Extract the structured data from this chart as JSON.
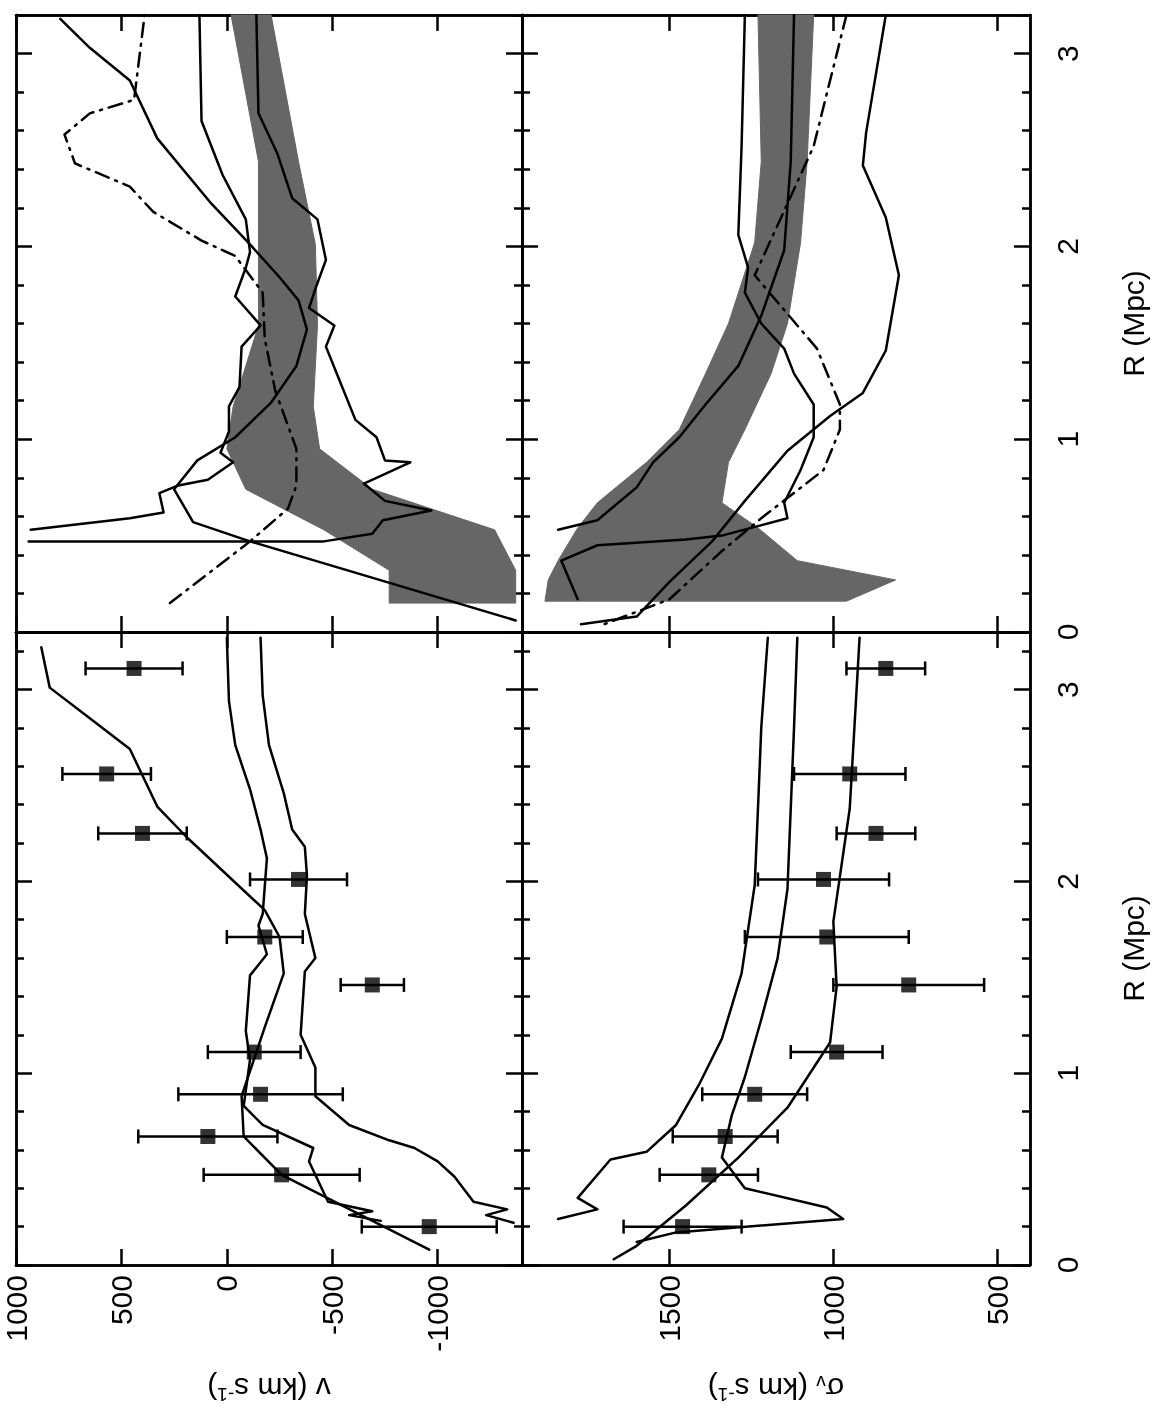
{
  "chart_data": [
    {
      "type": "line",
      "xlim": [
        1000,
        -1400
      ],
      "xticks": [
        1000,
        500,
        0,
        -500,
        -1000
      ],
      "ylim": [
        0,
        3.2
      ],
      "yticks": [
        0,
        {
          "value": 0.2,
          "label": null
        },
        {
          "value": 0.4,
          "label": null
        },
        {
          "value": 0.6,
          "label": null
        },
        {
          "value": 0.8,
          "label": null
        },
        1,
        {
          "value": 1.2,
          "label": null
        },
        {
          "value": 1.4,
          "label": null
        },
        {
          "value": 1.6,
          "label": null
        },
        {
          "value": 1.8,
          "label": null
        },
        2,
        {
          "value": 2.2,
          "label": null
        },
        {
          "value": 2.4,
          "label": null
        },
        {
          "value": 2.6,
          "label": null
        },
        {
          "value": 2.8,
          "label": null
        },
        3,
        {
          "value": 3.2,
          "label": null
        }
      ],
      "tick_labels": false,
      "series": [
        {
          "type": "area",
          "color": "#666666",
          "x": [
            -20,
            -150,
            -150,
            -150,
            -30,
            0,
            -90,
            -460,
            -770,
            -770,
            -1370,
            -1370,
            -1270,
            -690,
            -440,
            -410,
            -430,
            -420,
            -340,
            -210
          ],
          "values": [
            3.2,
            2.44,
            2.01,
            1.59,
            1.17,
            0.95,
            0.74,
            0.53,
            0.32,
            0.15,
            0.15,
            0.32,
            0.53,
            0.74,
            0.95,
            1.17,
            1.59,
            2.01,
            2.44,
            3.2
          ]
        },
        {
          "color": "#000000",
          "x": [
            130,
            120,
            20,
            -90,
            -110,
            -90,
            -40,
            -160,
            -70,
            -60,
            -10,
            -10,
            30,
            -30,
            90,
            230,
            320,
            300,
            460,
            930
          ],
          "values": [
            3.2,
            2.65,
            2.37,
            2.14,
            1.97,
            1.89,
            1.74,
            1.59,
            1.48,
            1.27,
            1.17,
            1.04,
            0.93,
            0.88,
            0.79,
            0.76,
            0.72,
            0.62,
            0.59,
            0.53
          ]
        },
        {
          "color": "#000000",
          "x": [
            -140,
            -150,
            -240,
            -310,
            -430,
            -470,
            -420,
            -390,
            -510,
            -470,
            -540,
            -610,
            -710,
            -750,
            -870,
            -650,
            -750,
            -970,
            -740,
            -690,
            -460,
            940
          ],
          "values": [
            3.2,
            2.69,
            2.48,
            2.25,
            2.14,
            1.93,
            1.78,
            1.68,
            1.59,
            1.48,
            1.29,
            1.1,
            1.01,
            0.89,
            0.88,
            0.77,
            0.68,
            0.63,
            0.58,
            0.51,
            0.47,
            0.47
          ]
        },
        {
          "color": "#000000",
          "x": [
            -1370,
            -110,
            160,
            250,
            140,
            -40,
            -210,
            -330,
            -380,
            -340,
            -250,
            -110,
            80,
            330,
            460,
            650,
            790
          ],
          "values": [
            0.06,
            0.47,
            0.57,
            0.74,
            0.89,
            1.01,
            1.19,
            1.38,
            1.57,
            1.72,
            1.84,
            2.01,
            2.23,
            2.56,
            2.86,
            3.03,
            3.18
          ]
        },
        {
          "color": "#000000",
          "line_style": "dashdot",
          "x": [
            270,
            -110,
            -290,
            -330,
            -330,
            -230,
            -180,
            -170,
            -40,
            120,
            350,
            460,
            720,
            770,
            650,
            440,
            390
          ],
          "values": [
            0.15,
            0.47,
            0.64,
            0.76,
            0.95,
            1.25,
            1.52,
            1.76,
            1.95,
            2.03,
            2.18,
            2.31,
            2.43,
            2.58,
            2.69,
            2.76,
            3.2
          ]
        }
      ]
    },
    {
      "type": "line",
      "ylabel": "R (Mpc)",
      "xlim": [
        1950,
        400
      ],
      "xticks": [
        1500,
        1000,
        500
      ],
      "ylim": [
        0,
        3.2
      ],
      "yticks": [
        0,
        {
          "value": 0.2,
          "label": null
        },
        {
          "value": 0.4,
          "label": null
        },
        {
          "value": 0.6,
          "label": null
        },
        {
          "value": 0.8,
          "label": null
        },
        1,
        {
          "value": 1.2,
          "label": null
        },
        {
          "value": 1.4,
          "label": null
        },
        {
          "value": 1.6,
          "label": null
        },
        {
          "value": 1.8,
          "label": null
        },
        2,
        {
          "value": 2.2,
          "label": null
        },
        {
          "value": 2.4,
          "label": null
        },
        {
          "value": 2.6,
          "label": null
        },
        {
          "value": 2.8,
          "label": null
        },
        3,
        {
          "value": 3.2,
          "label": null
        }
      ],
      "tick_labels": "y",
      "series": [
        {
          "type": "area",
          "color": "#666666",
          "x": [
            1230,
            1220,
            1240,
            1320,
            1390,
            1470,
            1570,
            1720,
            1780,
            1840,
            1870,
            1880,
            960,
            810,
            1110,
            1230,
            1340,
            1320,
            1270,
            1190,
            1140,
            1100,
            1080,
            1060
          ],
          "values": [
            3.2,
            2.44,
            2.02,
            1.6,
            1.34,
            1.05,
            0.88,
            0.67,
            0.54,
            0.37,
            0.27,
            0.16,
            0.16,
            0.27,
            0.37,
            0.54,
            0.67,
            0.88,
            1.05,
            1.34,
            1.6,
            2.02,
            2.44,
            3.2
          ]
        },
        {
          "color": "#000000",
          "x": [
            1120,
            1130,
            1150,
            1220,
            1290,
            1390,
            1470,
            1550,
            1600,
            1720,
            1840
          ],
          "values": [
            3.2,
            2.44,
            1.98,
            1.64,
            1.38,
            1.18,
            1.01,
            0.88,
            0.75,
            0.58,
            0.53
          ]
        },
        {
          "color": "#000000",
          "x": [
            1270,
            1280,
            1290,
            1260,
            1270,
            1220,
            1150,
            1120,
            1060,
            1060,
            1100,
            1150,
            1140,
            1340,
            1450,
            1720,
            1830,
            1780
          ],
          "values": [
            3.2,
            2.52,
            2.06,
            1.89,
            1.76,
            1.6,
            1.47,
            1.34,
            1.18,
            1.01,
            0.84,
            0.67,
            0.59,
            0.5,
            0.48,
            0.45,
            0.37,
            0.17
          ]
        },
        {
          "color": "#000000",
          "line_style": "dashdot",
          "x": [
            960,
            1060,
            1240,
            1050,
            980,
            980,
            1030,
            1220,
            1340,
            1500,
            1700
          ],
          "values": [
            3.2,
            2.52,
            1.85,
            1.47,
            1.18,
            1.05,
            0.84,
            0.59,
            0.42,
            0.17,
            0.04
          ]
        },
        {
          "color": "#000000",
          "x": [
            840,
            900,
            910,
            840,
            800,
            840,
            910,
            1010,
            1140,
            1270,
            1370,
            1500,
            1600,
            1770
          ],
          "values": [
            3.2,
            2.59,
            2.42,
            2.15,
            1.85,
            1.46,
            1.24,
            1.12,
            0.94,
            0.68,
            0.47,
            0.26,
            0.08,
            0.04
          ]
        }
      ]
    },
    {
      "type": "line",
      "xlabel": "v (km s$^{-1}$)",
      "xlim": [
        1000,
        -1400
      ],
      "xticks": [
        1000,
        500,
        0,
        -500,
        -1000
      ],
      "ylim": [
        0,
        3.3
      ],
      "yticks": [
        0,
        {
          "value": 0.2,
          "label": null
        },
        {
          "value": 0.4,
          "label": null
        },
        {
          "value": 0.6,
          "label": null
        },
        {
          "value": 0.8,
          "label": null
        },
        1,
        {
          "value": 1.2,
          "label": null
        },
        {
          "value": 1.4,
          "label": null
        },
        {
          "value": 1.6,
          "label": null
        },
        {
          "value": 1.8,
          "label": null
        },
        2,
        {
          "value": 2.2,
          "label": null
        },
        {
          "value": 2.4,
          "label": null
        },
        {
          "value": 2.6,
          "label": null
        },
        {
          "value": 2.8,
          "label": null
        },
        3,
        {
          "value": 3.2,
          "label": null
        }
      ],
      "tick_labels": "x",
      "series": [
        {
          "type": "scatter",
          "marker": "square",
          "color": "#000000",
          "x": [
            440,
            570,
            400,
            -340,
            -180,
            -690,
            -130,
            -160,
            90,
            -260,
            -960
          ],
          "values": [
            3.11,
            2.56,
            2.25,
            2.01,
            1.71,
            1.46,
            1.11,
            0.89,
            0.67,
            0.47,
            0.2
          ],
          "xerrors": [
            230,
            210,
            210,
            230,
            180,
            150,
            220,
            390,
            330,
            370,
            320
          ]
        },
        {
          "color": "#000000",
          "x": [
            -960,
            -260,
            -80,
            -70,
            -180,
            -270,
            -250,
            -180,
            190,
            330,
            460,
            650,
            840,
            880
          ],
          "values": [
            0.08,
            0.47,
            0.67,
            0.88,
            1.24,
            1.52,
            1.71,
            1.85,
            2.23,
            2.39,
            2.69,
            2.85,
            3.01,
            3.22
          ]
        },
        {
          "color": "#000000",
          "x": [
            0,
            -10,
            -40,
            -110,
            -160,
            -190,
            -170,
            -150,
            -190,
            -110,
            -90,
            -110,
            -80,
            -170,
            -410,
            -390,
            -480,
            -690,
            -580,
            -730
          ],
          "values": [
            3.27,
            2.94,
            2.71,
            2.48,
            2.27,
            2.12,
            1.83,
            1.77,
            1.62,
            1.51,
            1.22,
            1.07,
            0.83,
            0.73,
            0.61,
            0.54,
            0.33,
            0.28,
            0.26,
            0.23
          ]
        },
        {
          "color": "#000000",
          "x": [
            -160,
            -170,
            -200,
            -270,
            -310,
            -370,
            -380,
            -370,
            -420,
            -370,
            -350,
            -420,
            -420,
            -580,
            -770,
            -890,
            -1000,
            -1080,
            -1170,
            -1330,
            -1230,
            -1360
          ],
          "values": [
            3.27,
            2.97,
            2.71,
            2.46,
            2.27,
            2.18,
            2.03,
            1.83,
            1.6,
            1.53,
            1.2,
            1.03,
            0.88,
            0.73,
            0.65,
            0.61,
            0.54,
            0.46,
            0.33,
            0.29,
            0.26,
            0.22
          ]
        }
      ]
    },
    {
      "type": "line",
      "xlabel": "σ$_{v}$ (km s$^{-1}$)",
      "ylabel": "R (Mpc)",
      "xlim": [
        1950,
        400
      ],
      "xticks": [
        1500,
        1000,
        500
      ],
      "ylim": [
        0,
        3.3
      ],
      "yticks": [
        0,
        {
          "value": 0.2,
          "label": null
        },
        {
          "value": 0.4,
          "label": null
        },
        {
          "value": 0.6,
          "label": null
        },
        {
          "value": 0.8,
          "label": null
        },
        1,
        {
          "value": 1.2,
          "label": null
        },
        {
          "value": 1.4,
          "label": null
        },
        {
          "value": 1.6,
          "label": null
        },
        {
          "value": 1.8,
          "label": null
        },
        2,
        {
          "value": 2.2,
          "label": null
        },
        {
          "value": 2.4,
          "label": null
        },
        {
          "value": 2.6,
          "label": null
        },
        {
          "value": 2.8,
          "label": null
        },
        3,
        {
          "value": 3.2,
          "label": null
        }
      ],
      "series": [
        {
          "type": "scatter",
          "marker": "square",
          "color": "#000000",
          "x": [
            840,
            950,
            870,
            1030,
            1020,
            770,
            990,
            1240,
            1330,
            1380,
            1460
          ],
          "values": [
            3.11,
            2.56,
            2.25,
            2.01,
            1.71,
            1.46,
            1.11,
            0.89,
            0.67,
            0.47,
            0.2
          ],
          "xerrors": [
            120,
            170,
            120,
            200,
            250,
            230,
            140,
            160,
            160,
            150,
            180
          ]
        },
        {
          "color": "#000000",
          "x": [
            1670,
            1600,
            1450,
            1290,
            1140,
            1010,
            990,
            1000,
            950,
            920
          ],
          "values": [
            0.03,
            0.1,
            0.31,
            0.56,
            0.82,
            1.16,
            1.45,
            1.79,
            2.38,
            3.27
          ]
        },
        {
          "color": "#000000",
          "x": [
            1200,
            1220,
            1230,
            1240,
            1280,
            1340,
            1410,
            1480,
            1570,
            1680,
            1780,
            1720,
            1840
          ],
          "values": [
            3.27,
            2.8,
            2.38,
            1.98,
            1.52,
            1.18,
            0.94,
            0.73,
            0.59,
            0.55,
            0.35,
            0.29,
            0.24
          ]
        },
        {
          "color": "#000000",
          "x": [
            1110,
            1120,
            1130,
            1140,
            1170,
            1220,
            1270,
            1310,
            1340,
            1270,
            1020,
            970,
            1480,
            1600
          ],
          "values": [
            3.27,
            2.8,
            2.38,
            1.96,
            1.6,
            1.28,
            0.98,
            0.78,
            0.56,
            0.4,
            0.3,
            0.24,
            0.17,
            0.12
          ]
        }
      ]
    }
  ]
}
